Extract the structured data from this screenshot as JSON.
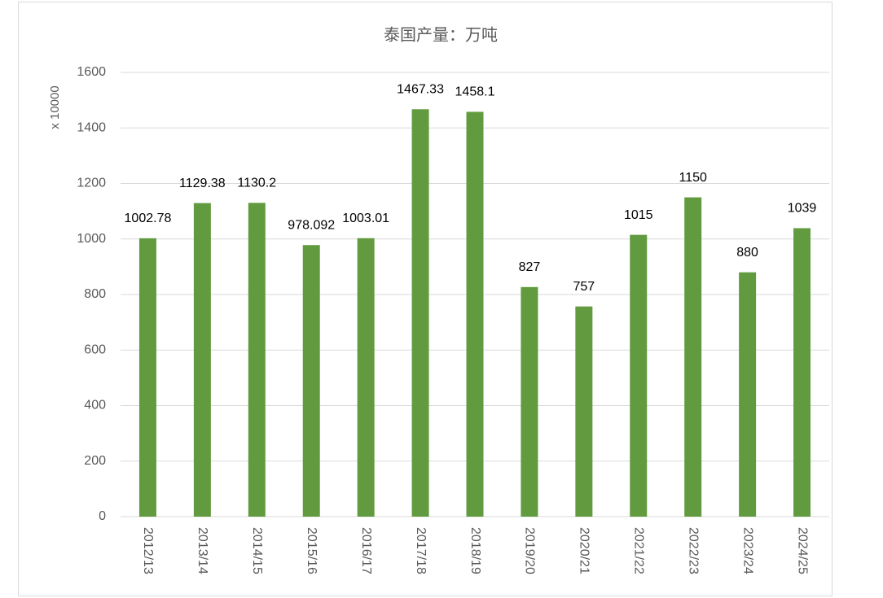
{
  "chart_data": {
    "type": "bar",
    "title": "泰国产量：万吨",
    "ylabel": "x 10000",
    "categories": [
      "2012/13",
      "2013/14",
      "2014/15",
      "2015/16",
      "2016/17",
      "2017/18",
      "2018/19",
      "2019/20",
      "2020/21",
      "2021/22",
      "2022/23",
      "2023/24",
      "2024/25"
    ],
    "values": [
      1002.78,
      1129.38,
      1130.2,
      978.092,
      1003.01,
      1467.33,
      1458.1,
      827,
      757,
      1015,
      1150,
      880,
      1039
    ],
    "color": "#629b3f",
    "ylim": [
      0,
      1600
    ],
    "yticks": [
      0,
      200,
      400,
      600,
      800,
      1000,
      1200,
      1400,
      1600
    ],
    "grid": true
  }
}
